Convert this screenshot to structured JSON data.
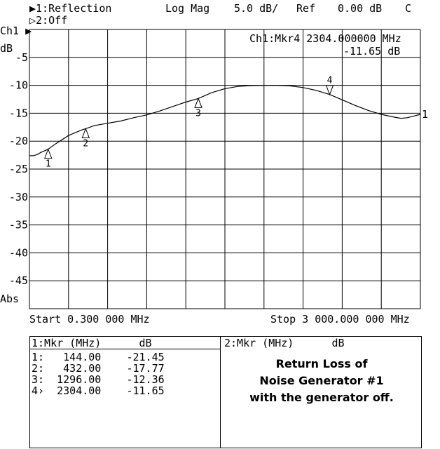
{
  "header": {
    "ch1_line": "▶1:Reflection",
    "format": "Log Mag",
    "scale": "5.0 dB/",
    "ref_label": "Ref",
    "ref_value": "0.00 dB",
    "cal": "C",
    "ch2_line": "▷2:Off",
    "channel": "Ch1 ▶",
    "unit": "dB",
    "abs": "Abs"
  },
  "marker_readout": {
    "line1": "Ch1:Mkr4 2304.000000 MHz",
    "line2": "-11.65 dB"
  },
  "chart_data": {
    "type": "line",
    "xlim": [
      0.3,
      3000
    ],
    "ylim": [
      -50,
      0
    ],
    "grid": true,
    "y_ticks": [
      {
        "v": -5,
        "label": "-5"
      },
      {
        "v": -10,
        "label": "-10"
      },
      {
        "v": -15,
        "label": "-15"
      },
      {
        "v": -20,
        "label": "-20"
      },
      {
        "v": -25,
        "label": "-25"
      },
      {
        "v": -30,
        "label": "-30"
      },
      {
        "v": -35,
        "label": "-35"
      },
      {
        "v": -40,
        "label": "-40"
      },
      {
        "v": -45,
        "label": "-45"
      }
    ],
    "series": [
      {
        "x": [
          0.3,
          30,
          60,
          90,
          120,
          144,
          200,
          300,
          400,
          432,
          500,
          600,
          700,
          800,
          900,
          1000,
          1100,
          1200,
          1296,
          1400,
          1500,
          1600,
          1700,
          1800,
          1900,
          2000,
          2100,
          2200,
          2304,
          2400,
          2500,
          2600,
          2700,
          2800,
          2850,
          2900,
          2950,
          3000
        ],
        "y": [
          -22.6,
          -22.6,
          -22.4,
          -22.0,
          -21.7,
          -21.45,
          -20.5,
          -19.0,
          -18.0,
          -17.77,
          -17.2,
          -16.8,
          -16.4,
          -15.8,
          -15.3,
          -14.6,
          -13.8,
          -13.0,
          -12.36,
          -11.3,
          -10.6,
          -10.2,
          -10.05,
          -10.0,
          -10.0,
          -10.1,
          -10.4,
          -10.9,
          -11.65,
          -12.6,
          -13.6,
          -14.5,
          -15.2,
          -15.7,
          -15.9,
          -15.8,
          -15.5,
          -15.2
        ]
      }
    ],
    "markers": [
      {
        "id": "1",
        "x": 144.0,
        "y": -21.45,
        "label_below": true
      },
      {
        "id": "2",
        "x": 432.0,
        "y": -17.77,
        "label_below": true
      },
      {
        "id": "3",
        "x": 1296.0,
        "y": -12.36,
        "label_below": true
      },
      {
        "id": "4",
        "x": 2304.0,
        "y": -11.65,
        "label_below": false,
        "active": true
      }
    ],
    "ref_marker": "1"
  },
  "axis": {
    "start": "Start 0.300 000 MHz",
    "stop": "Stop 3 000.000 000 MHz"
  },
  "table1": {
    "header": "1:Mkr (MHz)      dB",
    "rows": [
      "1:   144.00    -21.45",
      "2:   432.00    -17.77",
      "3:  1296.00    -12.36",
      "4›  2304.00    -11.65"
    ]
  },
  "table2": {
    "header": "2:Mkr (MHz)      dB"
  },
  "note": {
    "line1": "Return Loss of",
    "line2": "Noise Generator #1",
    "line3": "with the generator off."
  }
}
